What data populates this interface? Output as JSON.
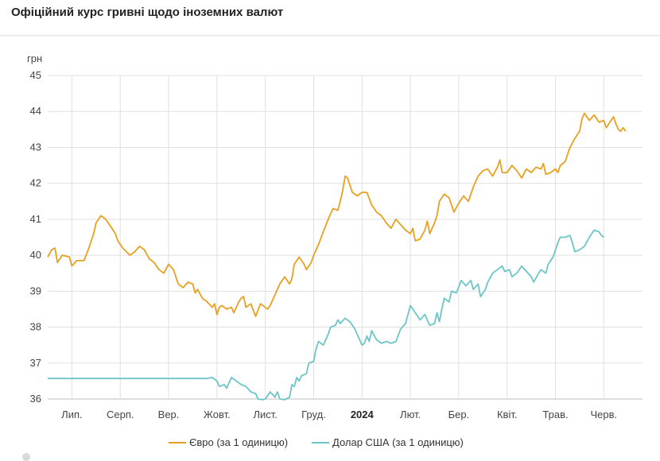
{
  "header": {
    "title": "Офіційний курс гривні щодо іноземних валют"
  },
  "chart_data": {
    "type": "line",
    "ylabel": "грн",
    "ylim": [
      36,
      45
    ],
    "yticks": [
      36,
      37,
      38,
      39,
      40,
      41,
      42,
      43,
      44,
      45
    ],
    "x_range": [
      0,
      12.3
    ],
    "x_unit": "months since 2023-06-01",
    "xticks": [
      {
        "x": 0.5,
        "label": "Лип.",
        "bold": false
      },
      {
        "x": 1.5,
        "label": "Серп.",
        "bold": false
      },
      {
        "x": 2.5,
        "label": "Вер.",
        "bold": false
      },
      {
        "x": 3.5,
        "label": "Жовт.",
        "bold": false
      },
      {
        "x": 4.5,
        "label": "Лист.",
        "bold": false
      },
      {
        "x": 5.5,
        "label": "Груд.",
        "bold": false
      },
      {
        "x": 6.5,
        "label": "2024",
        "bold": true
      },
      {
        "x": 7.5,
        "label": "Лют.",
        "bold": false
      },
      {
        "x": 8.5,
        "label": "Бер.",
        "bold": false
      },
      {
        "x": 9.5,
        "label": "Квіт.",
        "bold": false
      },
      {
        "x": 10.5,
        "label": "Трав.",
        "bold": false
      },
      {
        "x": 11.5,
        "label": "Черв.",
        "bold": false
      }
    ],
    "grid": true,
    "legend_position": "bottom-center",
    "series": [
      {
        "name": "Євро (за 1 одиницю)",
        "color": "#e8a020",
        "points": [
          [
            0.0,
            39.95
          ],
          [
            0.08,
            40.15
          ],
          [
            0.15,
            40.2
          ],
          [
            0.2,
            39.8
          ],
          [
            0.3,
            40.0
          ],
          [
            0.45,
            39.95
          ],
          [
            0.5,
            39.7
          ],
          [
            0.6,
            39.85
          ],
          [
            0.75,
            39.85
          ],
          [
            0.85,
            40.2
          ],
          [
            0.95,
            40.6
          ],
          [
            1.0,
            40.9
          ],
          [
            1.1,
            41.1
          ],
          [
            1.2,
            41.0
          ],
          [
            1.3,
            40.8
          ],
          [
            1.4,
            40.6
          ],
          [
            1.45,
            40.4
          ],
          [
            1.55,
            40.2
          ],
          [
            1.7,
            40.0
          ],
          [
            1.8,
            40.1
          ],
          [
            1.9,
            40.25
          ],
          [
            2.0,
            40.15
          ],
          [
            2.1,
            39.9
          ],
          [
            2.2,
            39.8
          ],
          [
            2.3,
            39.6
          ],
          [
            2.4,
            39.5
          ],
          [
            2.5,
            39.75
          ],
          [
            2.6,
            39.6
          ],
          [
            2.7,
            39.2
          ],
          [
            2.8,
            39.1
          ],
          [
            2.9,
            39.25
          ],
          [
            3.0,
            39.2
          ],
          [
            3.05,
            38.95
          ],
          [
            3.1,
            39.05
          ],
          [
            3.2,
            38.8
          ],
          [
            3.3,
            38.7
          ],
          [
            3.4,
            38.55
          ],
          [
            3.45,
            38.65
          ],
          [
            3.5,
            38.35
          ],
          [
            3.55,
            38.55
          ],
          [
            3.6,
            38.6
          ],
          [
            3.7,
            38.5
          ],
          [
            3.8,
            38.55
          ],
          [
            3.85,
            38.4
          ],
          [
            3.95,
            38.7
          ],
          [
            4.0,
            38.8
          ],
          [
            4.05,
            38.85
          ],
          [
            4.1,
            38.55
          ],
          [
            4.2,
            38.65
          ],
          [
            4.3,
            38.3
          ],
          [
            4.4,
            38.65
          ],
          [
            4.5,
            38.55
          ],
          [
            4.55,
            38.5
          ],
          [
            4.6,
            38.6
          ],
          [
            4.7,
            38.9
          ],
          [
            4.8,
            39.2
          ],
          [
            4.9,
            39.4
          ],
          [
            5.0,
            39.2
          ],
          [
            5.05,
            39.35
          ],
          [
            5.1,
            39.75
          ],
          [
            5.2,
            39.95
          ],
          [
            5.3,
            39.75
          ],
          [
            5.35,
            39.6
          ],
          [
            5.45,
            39.8
          ],
          [
            5.5,
            40.0
          ],
          [
            5.6,
            40.3
          ],
          [
            5.7,
            40.65
          ],
          [
            5.8,
            41.0
          ],
          [
            5.9,
            41.3
          ],
          [
            6.0,
            41.25
          ],
          [
            6.05,
            41.5
          ],
          [
            6.1,
            41.8
          ],
          [
            6.15,
            42.2
          ],
          [
            6.2,
            42.15
          ],
          [
            6.3,
            41.75
          ],
          [
            6.4,
            41.65
          ],
          [
            6.5,
            41.75
          ],
          [
            6.6,
            41.75
          ],
          [
            6.7,
            41.4
          ],
          [
            6.8,
            41.2
          ],
          [
            6.9,
            41.1
          ],
          [
            7.0,
            40.9
          ],
          [
            7.1,
            40.75
          ],
          [
            7.2,
            41.0
          ],
          [
            7.3,
            40.85
          ],
          [
            7.4,
            40.7
          ],
          [
            7.5,
            40.6
          ],
          [
            7.55,
            40.75
          ],
          [
            7.6,
            40.4
          ],
          [
            7.7,
            40.45
          ],
          [
            7.8,
            40.7
          ],
          [
            7.85,
            40.95
          ],
          [
            7.9,
            40.6
          ],
          [
            8.0,
            40.9
          ],
          [
            8.05,
            41.1
          ],
          [
            8.1,
            41.5
          ],
          [
            8.2,
            41.7
          ],
          [
            8.3,
            41.6
          ],
          [
            8.35,
            41.4
          ],
          [
            8.4,
            41.2
          ],
          [
            8.5,
            41.45
          ],
          [
            8.6,
            41.65
          ],
          [
            8.7,
            41.5
          ],
          [
            8.8,
            41.9
          ],
          [
            8.9,
            42.2
          ],
          [
            9.0,
            42.35
          ],
          [
            9.1,
            42.4
          ],
          [
            9.2,
            42.2
          ],
          [
            9.3,
            42.45
          ],
          [
            9.35,
            42.65
          ],
          [
            9.4,
            42.3
          ],
          [
            9.5,
            42.3
          ],
          [
            9.6,
            42.5
          ],
          [
            9.7,
            42.35
          ],
          [
            9.8,
            42.15
          ],
          [
            9.9,
            42.4
          ],
          [
            10.0,
            42.3
          ],
          [
            10.1,
            42.45
          ],
          [
            10.2,
            42.4
          ],
          [
            10.25,
            42.55
          ],
          [
            10.3,
            42.25
          ],
          [
            10.4,
            42.3
          ],
          [
            10.5,
            42.4
          ],
          [
            10.55,
            42.3
          ],
          [
            10.6,
            42.5
          ],
          [
            10.7,
            42.6
          ],
          [
            10.75,
            42.8
          ],
          [
            10.8,
            43.0
          ],
          [
            10.9,
            43.25
          ],
          [
            11.0,
            43.45
          ],
          [
            11.05,
            43.8
          ],
          [
            11.1,
            43.95
          ],
          [
            11.2,
            43.75
          ],
          [
            11.3,
            43.9
          ],
          [
            11.4,
            43.7
          ],
          [
            11.5,
            43.75
          ],
          [
            11.55,
            43.55
          ],
          [
            11.6,
            43.65
          ],
          [
            11.7,
            43.85
          ],
          [
            11.75,
            43.65
          ],
          [
            11.8,
            43.5
          ],
          [
            11.85,
            43.45
          ],
          [
            11.9,
            43.55
          ],
          [
            11.95,
            43.45
          ]
        ]
      },
      {
        "name": "Долар США (за 1 одиницю)",
        "color": "#6cc5c8",
        "points": [
          [
            0.0,
            36.57
          ],
          [
            3.3,
            36.57
          ],
          [
            3.4,
            36.6
          ],
          [
            3.5,
            36.5
          ],
          [
            3.55,
            36.35
          ],
          [
            3.65,
            36.4
          ],
          [
            3.7,
            36.3
          ],
          [
            3.8,
            36.6
          ],
          [
            3.9,
            36.5
          ],
          [
            4.0,
            36.4
          ],
          [
            4.1,
            36.35
          ],
          [
            4.2,
            36.2
          ],
          [
            4.3,
            36.15
          ],
          [
            4.35,
            36.0
          ],
          [
            4.45,
            35.98
          ],
          [
            4.5,
            36.0
          ],
          [
            4.6,
            36.2
          ],
          [
            4.7,
            36.05
          ],
          [
            4.75,
            36.2
          ],
          [
            4.8,
            36.0
          ],
          [
            4.9,
            35.98
          ],
          [
            5.0,
            36.05
          ],
          [
            5.05,
            36.4
          ],
          [
            5.1,
            36.35
          ],
          [
            5.15,
            36.6
          ],
          [
            5.2,
            36.5
          ],
          [
            5.25,
            36.65
          ],
          [
            5.35,
            36.7
          ],
          [
            5.4,
            37.0
          ],
          [
            5.5,
            37.05
          ],
          [
            5.55,
            37.4
          ],
          [
            5.6,
            37.6
          ],
          [
            5.7,
            37.5
          ],
          [
            5.8,
            37.8
          ],
          [
            5.85,
            38.0
          ],
          [
            5.95,
            38.05
          ],
          [
            6.0,
            38.2
          ],
          [
            6.05,
            38.1
          ],
          [
            6.15,
            38.25
          ],
          [
            6.25,
            38.15
          ],
          [
            6.35,
            37.95
          ],
          [
            6.4,
            37.8
          ],
          [
            6.5,
            37.5
          ],
          [
            6.55,
            37.55
          ],
          [
            6.6,
            37.75
          ],
          [
            6.65,
            37.6
          ],
          [
            6.7,
            37.9
          ],
          [
            6.8,
            37.65
          ],
          [
            6.9,
            37.55
          ],
          [
            7.0,
            37.6
          ],
          [
            7.1,
            37.55
          ],
          [
            7.2,
            37.6
          ],
          [
            7.3,
            37.95
          ],
          [
            7.4,
            38.1
          ],
          [
            7.5,
            38.6
          ],
          [
            7.6,
            38.4
          ],
          [
            7.7,
            38.2
          ],
          [
            7.8,
            38.35
          ],
          [
            7.9,
            38.05
          ],
          [
            8.0,
            38.1
          ],
          [
            8.05,
            38.4
          ],
          [
            8.1,
            38.15
          ],
          [
            8.15,
            38.5
          ],
          [
            8.2,
            38.8
          ],
          [
            8.3,
            38.7
          ],
          [
            8.35,
            39.0
          ],
          [
            8.45,
            38.95
          ],
          [
            8.55,
            39.3
          ],
          [
            8.65,
            39.15
          ],
          [
            8.75,
            39.3
          ],
          [
            8.8,
            39.05
          ],
          [
            8.9,
            39.2
          ],
          [
            8.95,
            38.85
          ],
          [
            9.05,
            39.05
          ],
          [
            9.1,
            39.25
          ],
          [
            9.2,
            39.5
          ],
          [
            9.3,
            39.6
          ],
          [
            9.4,
            39.7
          ],
          [
            9.45,
            39.55
          ],
          [
            9.55,
            39.6
          ],
          [
            9.6,
            39.4
          ],
          [
            9.7,
            39.5
          ],
          [
            9.8,
            39.7
          ],
          [
            9.9,
            39.55
          ],
          [
            10.0,
            39.4
          ],
          [
            10.05,
            39.25
          ],
          [
            10.15,
            39.5
          ],
          [
            10.2,
            39.6
          ],
          [
            10.3,
            39.5
          ],
          [
            10.35,
            39.75
          ],
          [
            10.45,
            39.95
          ],
          [
            10.55,
            40.35
          ],
          [
            10.6,
            40.5
          ],
          [
            10.7,
            40.5
          ],
          [
            10.8,
            40.55
          ],
          [
            10.85,
            40.35
          ],
          [
            10.9,
            40.1
          ],
          [
            11.0,
            40.15
          ],
          [
            11.1,
            40.25
          ],
          [
            11.2,
            40.5
          ],
          [
            11.3,
            40.7
          ],
          [
            11.4,
            40.65
          ],
          [
            11.45,
            40.55
          ],
          [
            11.5,
            40.5
          ]
        ]
      }
    ]
  }
}
